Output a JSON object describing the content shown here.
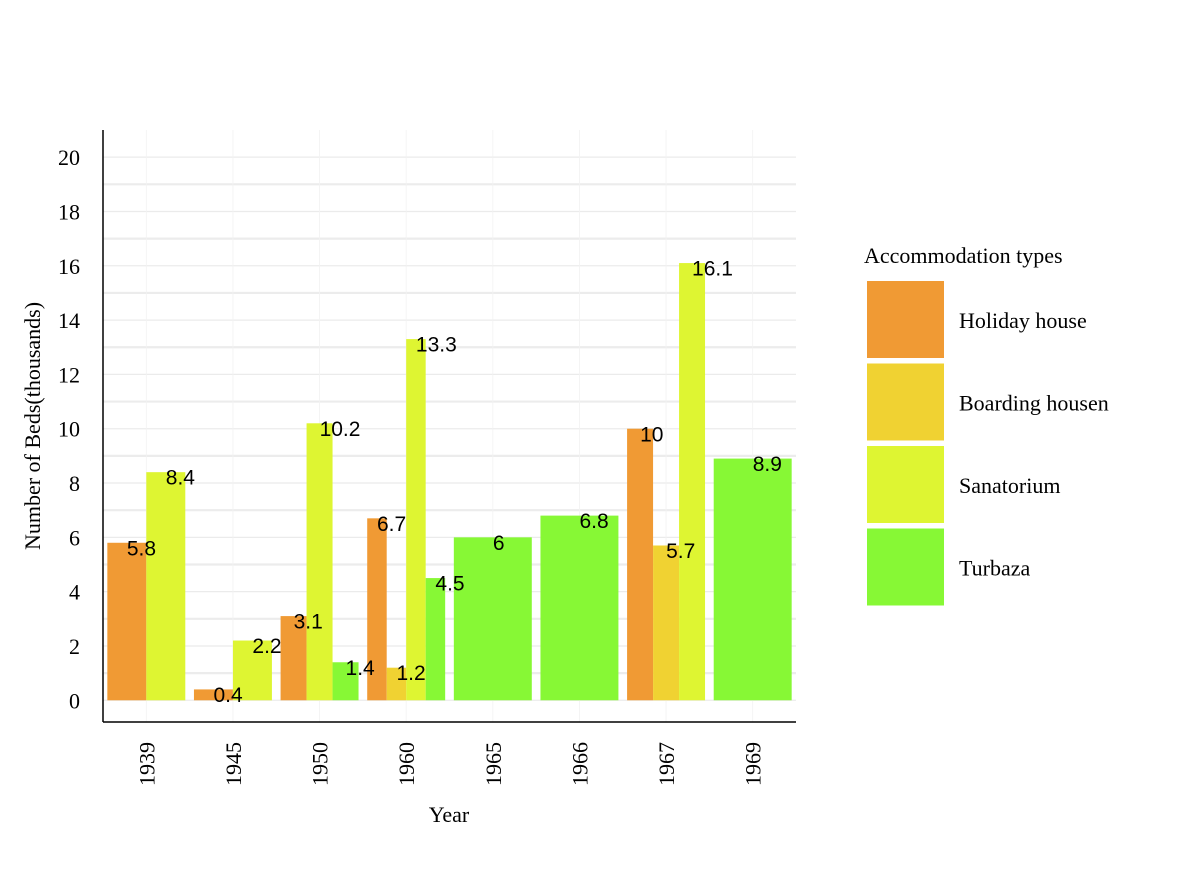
{
  "chart_data": {
    "type": "bar",
    "title": "",
    "xlabel": "Year",
    "ylabel": "Number of Beds(thousands)",
    "categories": [
      "1939",
      "1945",
      "1950",
      "1960",
      "1965",
      "1966",
      "1967",
      "1969"
    ],
    "ylim": [
      -0.8,
      21
    ],
    "yticks": [
      0,
      2,
      4,
      6,
      8,
      10,
      12,
      14,
      16,
      18,
      20
    ],
    "yticks_labels": [
      "0",
      "2",
      "4",
      "6",
      "8",
      "10",
      "12",
      "14",
      "16",
      "18",
      "20"
    ],
    "grid": true,
    "legend": {
      "title": "Accommodation types",
      "position": "right"
    },
    "series": [
      {
        "name": "Holiday house",
        "color": "#f09a34",
        "values": [
          5.8,
          0.4,
          3.1,
          6.7,
          null,
          null,
          10,
          null
        ],
        "labels": [
          "5.8",
          "0.4",
          "3.1",
          "6.7",
          "",
          "",
          "10",
          ""
        ]
      },
      {
        "name": "Boarding housen",
        "color": "#f0d232",
        "values": [
          null,
          null,
          null,
          1.2,
          null,
          null,
          5.7,
          null
        ],
        "labels": [
          "",
          "",
          "",
          "1.2",
          "",
          "",
          "5.7",
          ""
        ]
      },
      {
        "name": "Sanatorium",
        "color": "#def532",
        "values": [
          8.4,
          2.2,
          10.2,
          13.3,
          null,
          null,
          16.1,
          null
        ],
        "labels": [
          "8.4",
          "2.2",
          "10.2",
          "13.3",
          "",
          "",
          "16.1",
          ""
        ]
      },
      {
        "name": "Turbaza",
        "color": "#87f835",
        "values": [
          null,
          null,
          1.4,
          4.5,
          6,
          6.8,
          null,
          8.9
        ],
        "labels": [
          "",
          "",
          "1.4",
          "4.5",
          "6",
          "6.8",
          "",
          "8.9"
        ]
      }
    ]
  }
}
